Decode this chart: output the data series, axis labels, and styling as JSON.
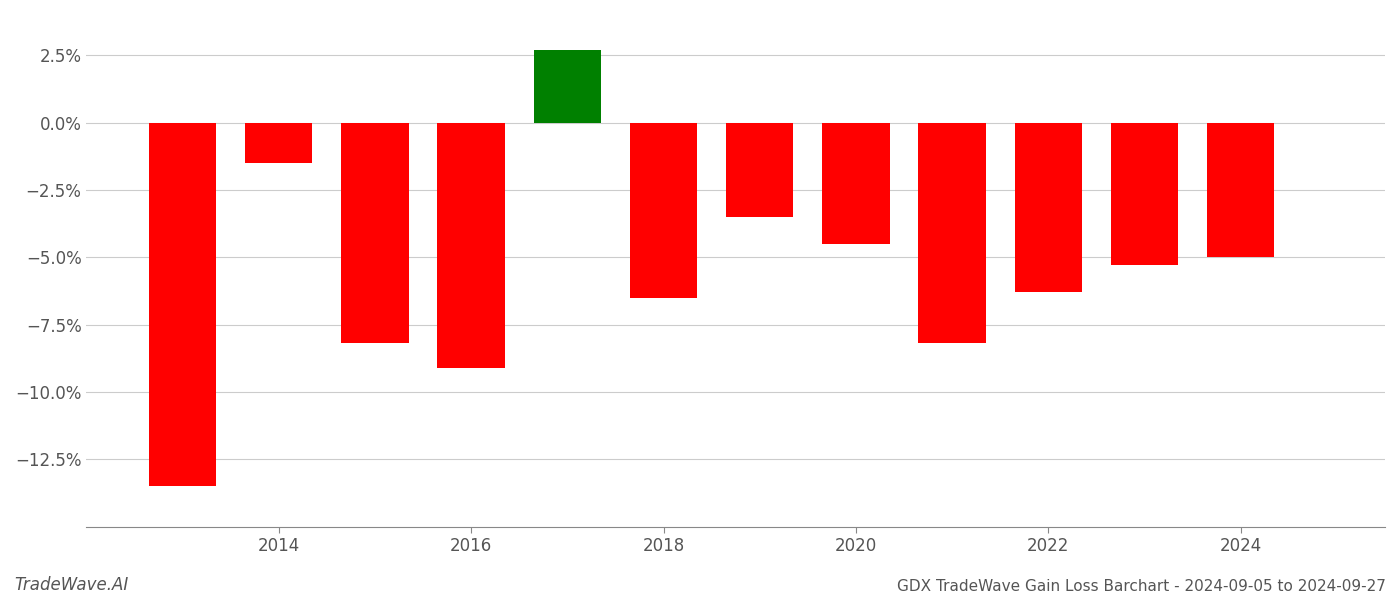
{
  "years": [
    2013,
    2014,
    2015,
    2016,
    2017,
    2018,
    2019,
    2020,
    2021,
    2022,
    2023,
    2024
  ],
  "values": [
    -13.5,
    -1.5,
    -8.2,
    -9.1,
    2.7,
    -6.5,
    -3.5,
    -4.5,
    -8.2,
    -6.3,
    -5.3,
    -5.0
  ],
  "colors": [
    "#ff0000",
    "#ff0000",
    "#ff0000",
    "#ff0000",
    "#008000",
    "#ff0000",
    "#ff0000",
    "#ff0000",
    "#ff0000",
    "#ff0000",
    "#ff0000",
    "#ff0000"
  ],
  "title": "GDX TradeWave Gain Loss Barchart - 2024-09-05 to 2024-09-27",
  "watermark": "TradeWave.AI",
  "ylim_min": -15.0,
  "ylim_max": 4.0,
  "yticks": [
    2.5,
    0.0,
    -2.5,
    -5.0,
    -7.5,
    -10.0,
    -12.5
  ],
  "xlabel_ticks": [
    2014,
    2016,
    2018,
    2020,
    2022,
    2024
  ],
  "bar_width": 0.7,
  "xlim_min": 2012.0,
  "xlim_max": 2025.5,
  "background_color": "#ffffff",
  "grid_color": "#cccccc",
  "axis_label_color": "#555555",
  "title_fontsize": 11,
  "tick_fontsize": 12,
  "watermark_fontsize": 12
}
